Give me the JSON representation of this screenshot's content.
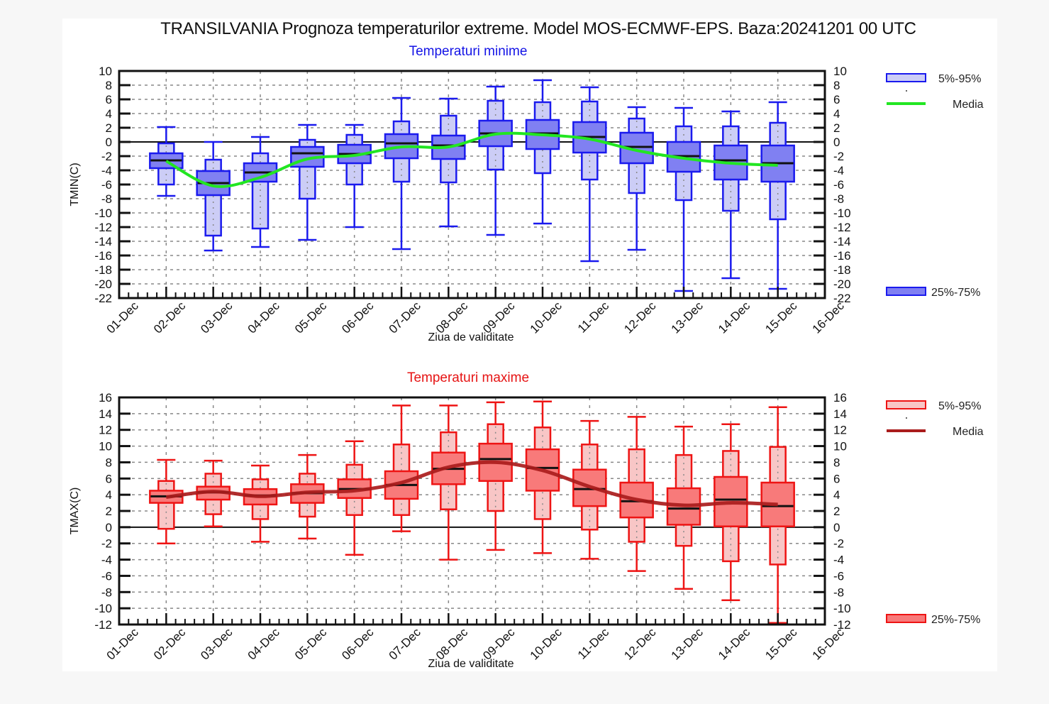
{
  "page": {
    "title": "TRANSILVANIA  Prognoza temperaturilor extreme.  Model MOS-ECMWF-EPS. Baza:20241201 00 UTC"
  },
  "chart_data": [
    {
      "id": "tmin",
      "type": "boxplot",
      "title": "Temperaturi minime",
      "xlabel": "Ziua de validitate",
      "ylabel": "TMIN(C)",
      "ylim": [
        -22,
        10
      ],
      "ytick_step": 2,
      "x_tick_labels": [
        "01-Dec",
        "02-Dec",
        "03-Dec",
        "04-Dec",
        "05-Dec",
        "06-Dec",
        "07-Dec",
        "08-Dec",
        "09-Dec",
        "10-Dec",
        "11-Dec",
        "12-Dec",
        "13-Dec",
        "14-Dec",
        "15-Dec",
        "16-Dec"
      ],
      "grid": true,
      "zero_line": true,
      "colors": {
        "stroke": "#1a1aee",
        "outer_fill": "#cccdf6",
        "inner_fill": "#8080f2",
        "median": "#111111",
        "mean": "#22e622"
      },
      "legend": {
        "placement": "right",
        "outer_label": "5%-95%",
        "mean_label": "Media",
        "inner_label": "25%-75%"
      },
      "categories": [
        "02-Dec",
        "03-Dec",
        "04-Dec",
        "05-Dec",
        "06-Dec",
        "07-Dec",
        "08-Dec",
        "09-Dec",
        "10-Dec",
        "11-Dec",
        "12-Dec",
        "13-Dec",
        "14-Dec",
        "15-Dec"
      ],
      "whisker_max": [
        2.1,
        0.0,
        0.7,
        2.4,
        2.4,
        6.2,
        6.1,
        7.8,
        8.7,
        7.7,
        4.9,
        4.8,
        4.3,
        5.6
      ],
      "p95": [
        -0.2,
        -2.5,
        -1.6,
        0.3,
        1.0,
        2.9,
        3.7,
        5.8,
        5.6,
        5.7,
        3.3,
        2.2,
        2.2,
        2.7
      ],
      "p75": [
        -1.6,
        -4.1,
        -3.0,
        -0.7,
        -0.4,
        1.1,
        0.9,
        3.0,
        3.1,
        2.8,
        1.3,
        0.0,
        -0.5,
        -0.5
      ],
      "median": [
        -2.6,
        -5.8,
        -4.3,
        -1.6,
        -1.7,
        -0.2,
        -0.5,
        1.2,
        1.2,
        0.7,
        -0.7,
        -2.0,
        -2.6,
        -3.0
      ],
      "p25": [
        -3.7,
        -7.5,
        -5.6,
        -3.5,
        -3.0,
        -2.3,
        -2.4,
        -0.6,
        -1.0,
        -1.5,
        -3.0,
        -4.2,
        -5.3,
        -5.6
      ],
      "p5": [
        -6.0,
        -13.2,
        -12.2,
        -8.0,
        -6.0,
        -5.6,
        -5.7,
        -3.9,
        -4.4,
        -5.3,
        -7.2,
        -8.2,
        -9.7,
        -10.9
      ],
      "whisker_min": [
        -7.6,
        -15.3,
        -14.8,
        -13.8,
        -12.0,
        -15.1,
        -11.9,
        -13.1,
        -11.5,
        -16.8,
        -15.2,
        -21.0,
        -19.2,
        -20.7
      ],
      "mean": [
        -2.7,
        -6.2,
        -5.0,
        -2.4,
        -1.9,
        -0.7,
        -0.7,
        1.1,
        1.0,
        0.4,
        -1.2,
        -2.3,
        -3.0,
        -3.3
      ]
    },
    {
      "id": "tmax",
      "type": "boxplot",
      "title": "Temperaturi maxime",
      "xlabel": "Ziua de validitate",
      "ylabel": "TMAX(C)",
      "ylim": [
        -12,
        16
      ],
      "ytick_step": 2,
      "x_tick_labels": [
        "01-Dec",
        "02-Dec",
        "03-Dec",
        "04-Dec",
        "05-Dec",
        "06-Dec",
        "07-Dec",
        "08-Dec",
        "09-Dec",
        "10-Dec",
        "11-Dec",
        "12-Dec",
        "13-Dec",
        "14-Dec",
        "15-Dec",
        "16-Dec"
      ],
      "grid": true,
      "zero_line": true,
      "colors": {
        "stroke": "#ee1414",
        "outer_fill": "#f8c6c6",
        "inner_fill": "#f87a7a",
        "median": "#111111",
        "mean": "#aa1c1c"
      },
      "legend": {
        "placement": "right",
        "outer_label": "5%-95%",
        "mean_label": "Media",
        "inner_label": "25%-75%"
      },
      "categories": [
        "02-Dec",
        "03-Dec",
        "04-Dec",
        "05-Dec",
        "06-Dec",
        "07-Dec",
        "08-Dec",
        "09-Dec",
        "10-Dec",
        "11-Dec",
        "12-Dec",
        "13-Dec",
        "14-Dec",
        "15-Dec"
      ],
      "whisker_max": [
        8.3,
        8.2,
        7.6,
        8.9,
        10.6,
        15.0,
        15.0,
        15.4,
        15.5,
        13.1,
        13.6,
        12.4,
        12.7,
        14.8
      ],
      "p95": [
        5.7,
        6.6,
        5.9,
        6.6,
        7.7,
        10.2,
        11.7,
        12.7,
        12.3,
        10.2,
        9.6,
        8.9,
        9.4,
        9.9
      ],
      "p75": [
        4.5,
        5.0,
        4.7,
        5.3,
        5.9,
        6.9,
        9.2,
        10.3,
        9.6,
        7.1,
        5.5,
        4.8,
        6.2,
        5.5
      ],
      "median": [
        3.8,
        4.3,
        3.9,
        4.2,
        4.7,
        5.2,
        7.2,
        8.4,
        7.3,
        4.7,
        3.2,
        2.3,
        3.4,
        2.6
      ],
      "p25": [
        3.0,
        3.4,
        2.8,
        3.0,
        3.6,
        3.5,
        5.3,
        5.7,
        4.5,
        2.6,
        1.2,
        0.3,
        0.1,
        0.1
      ],
      "p5": [
        -0.2,
        1.6,
        1.0,
        1.3,
        1.5,
        1.5,
        2.2,
        2.0,
        1.0,
        -0.3,
        -1.8,
        -2.3,
        -4.2,
        -4.6
      ],
      "whisker_min": [
        -2.0,
        0.1,
        -1.8,
        -1.4,
        -3.4,
        -0.5,
        -4.0,
        -2.8,
        -3.2,
        -3.9,
        -5.4,
        -7.6,
        -9.0,
        -11.8
      ],
      "mean": [
        3.7,
        4.4,
        3.8,
        4.3,
        4.5,
        5.5,
        7.4,
        8.0,
        7.0,
        5.0,
        3.4,
        2.7,
        3.0,
        2.8
      ]
    }
  ]
}
